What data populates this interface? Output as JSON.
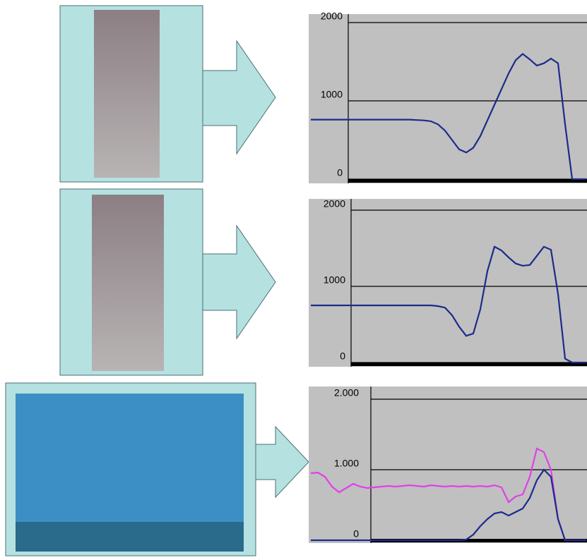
{
  "chart_data": [
    {
      "type": "line",
      "ylim": [
        -54,
        2108
      ],
      "yticks": [
        0,
        1000,
        2000
      ],
      "grid": true,
      "series": [
        {
          "color": "#1c2a8c",
          "values": [
            760,
            760,
            760,
            760,
            760,
            760,
            760,
            760,
            760,
            760,
            760,
            760,
            760,
            760,
            760,
            755,
            750,
            740,
            700,
            620,
            500,
            380,
            340,
            400,
            550,
            750,
            950,
            1150,
            1350,
            1520,
            1600,
            1530,
            1450,
            1480,
            1540,
            1480,
            700,
            0,
            0,
            0
          ]
        }
      ]
    },
    {
      "type": "line",
      "ylim": [
        -56,
        2148
      ],
      "yticks": [
        0,
        1000,
        2000
      ],
      "grid": true,
      "series": [
        {
          "color": "#1c2a8c",
          "values": [
            750,
            750,
            750,
            750,
            750,
            750,
            750,
            750,
            750,
            750,
            750,
            750,
            750,
            750,
            750,
            750,
            750,
            750,
            740,
            720,
            620,
            470,
            350,
            380,
            700,
            1200,
            1520,
            1470,
            1380,
            1300,
            1270,
            1280,
            1400,
            1520,
            1480,
            900,
            50,
            0,
            0,
            0
          ]
        }
      ]
    },
    {
      "type": "line",
      "ylim": [
        -40,
        2180
      ],
      "yticks": [
        {
          "value": 0,
          "label": "0"
        },
        {
          "value": 1000,
          "label": "1.000"
        },
        {
          "value": 2000,
          "label": "2.000"
        }
      ],
      "grid": true,
      "series": [
        {
          "color": "#e040e8",
          "values": [
            950,
            960,
            900,
            760,
            680,
            740,
            800,
            760,
            740,
            750,
            760,
            770,
            760,
            770,
            780,
            770,
            760,
            780,
            770,
            760,
            770,
            760,
            770,
            760,
            770,
            760,
            780,
            750,
            540,
            620,
            650,
            900,
            1300,
            1250,
            1000,
            300,
            0,
            0,
            0,
            0
          ]
        },
        {
          "color": "#1c2a8c",
          "values": [
            0,
            0,
            0,
            0,
            0,
            0,
            0,
            0,
            0,
            0,
            0,
            0,
            0,
            0,
            0,
            0,
            0,
            0,
            0,
            0,
            0,
            0,
            10,
            80,
            200,
            300,
            380,
            400,
            350,
            400,
            450,
            600,
            850,
            1000,
            900,
            300,
            0,
            0,
            0,
            0
          ]
        }
      ]
    }
  ]
}
